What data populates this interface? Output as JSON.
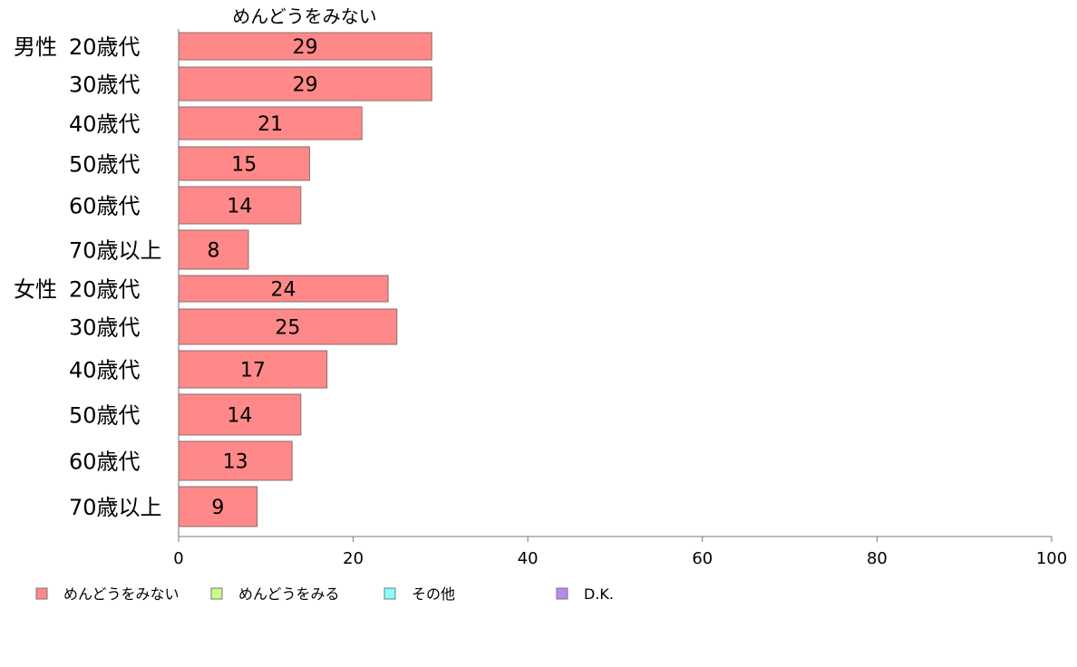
{
  "chart_data": {
    "type": "bar",
    "orientation": "horizontal",
    "title": "めんどうをみない",
    "groups": [
      "男性",
      "女性"
    ],
    "categories": [
      {
        "group": "男性",
        "label": "20歳代"
      },
      {
        "group": "",
        "label": "30歳代"
      },
      {
        "group": "",
        "label": "40歳代"
      },
      {
        "group": "",
        "label": "50歳代"
      },
      {
        "group": "",
        "label": "60歳代"
      },
      {
        "group": "",
        "label": "70歳以上"
      },
      {
        "group": "女性",
        "label": "20歳代"
      },
      {
        "group": "",
        "label": "30歳代"
      },
      {
        "group": "",
        "label": "40歳代"
      },
      {
        "group": "",
        "label": "50歳代"
      },
      {
        "group": "",
        "label": "60歳代"
      },
      {
        "group": "",
        "label": "70歳以上"
      }
    ],
    "series": [
      {
        "name": "めんどうをみない",
        "values": [
          29,
          29,
          21,
          15,
          14,
          8,
          24,
          25,
          17,
          14,
          13,
          9
        ],
        "color": "#ff8888"
      }
    ],
    "xlim": [
      0,
      100
    ],
    "xticks": [
      0,
      20,
      40,
      60,
      80,
      100
    ],
    "xlabel": "",
    "ylabel": "",
    "grid": false,
    "legend": {
      "placement": "bottom",
      "entries": [
        {
          "name": "めんどうをみない",
          "color": "#ff8888"
        },
        {
          "name": "めんどうをみる",
          "color": "#c8ff88"
        },
        {
          "name": "その他",
          "color": "#88ffff"
        },
        {
          "name": "D.K.",
          "color": "#bb88ee"
        }
      ]
    }
  }
}
